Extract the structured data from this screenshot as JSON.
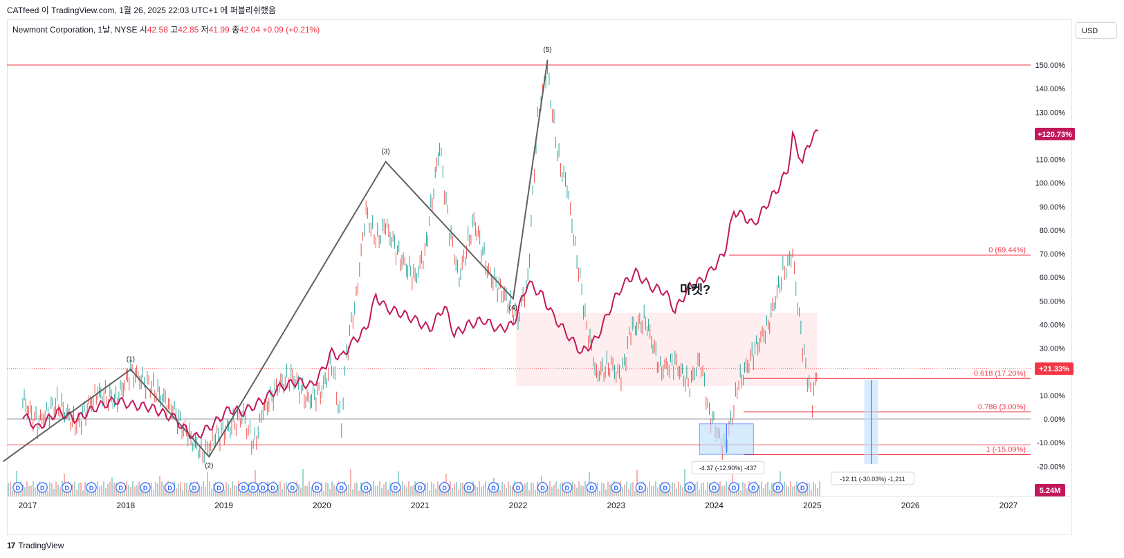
{
  "header": {
    "publish_line": "CATfeed 이 TradingView.com, 1월 26, 2025 22:03 UTC+1 에 퍼블리쉬했음",
    "symbol_name": "Newmont Corporation, 1날, NYSE",
    "open_label": "시",
    "open_value": "42.58",
    "high_label": "고",
    "high_value": "42.85",
    "low_label": "저",
    "low_value": "41.99",
    "close_label": "종",
    "close_value": "42.04",
    "change": "+0.09 (+0.21%)"
  },
  "currency_button": "USD",
  "footer": {
    "brand": "TradingView",
    "logo": "17"
  },
  "colors": {
    "price_up": "#26a69a",
    "price_down": "#ef5350",
    "compare_line": "#c2185b",
    "wave_line": "#606060",
    "level_line": "#f23645",
    "zone_fill": "#fde2e4",
    "measure_fill": "#bbdefb",
    "measure_line": "#2962ff",
    "dividend_circle": "#2962ff"
  },
  "chart_data": {
    "type": "line",
    "y_scale": "percent",
    "ylim": [
      -20,
      155
    ],
    "y_ticks": [
      "150.00%",
      "140.00%",
      "130.00%",
      "120.00%",
      "110.00%",
      "100.00%",
      "90.00%",
      "80.00%",
      "70.00%",
      "60.00%",
      "50.00%",
      "40.00%",
      "30.00%",
      "20.00%",
      "10.00%",
      "0.00%",
      "-10.00%",
      "-20.00%"
    ],
    "y_tick_values": [
      150,
      140,
      130,
      120,
      110,
      100,
      90,
      80,
      70,
      60,
      50,
      40,
      30,
      20,
      10,
      0,
      -10,
      -20
    ],
    "x_labels": [
      "2017",
      "2018",
      "2019",
      "2020",
      "2021",
      "2022",
      "2023",
      "2024",
      "2025",
      "2026",
      "2027"
    ],
    "x_label_values": [
      2017,
      2018,
      2019,
      2020,
      2021,
      2022,
      2023,
      2024,
      2025,
      2026,
      2027
    ],
    "xlim": [
      2016.75,
      2027.4
    ],
    "series": [
      {
        "name": "",
        "style": "candles",
        "x": [
          2016.95,
          2017.1,
          2017.3,
          2017.5,
          2017.7,
          2017.9,
          2018.05,
          2018.25,
          2018.45,
          2018.65,
          2018.8,
          2018.9,
          2019.05,
          2019.2,
          2019.3,
          2019.4,
          2019.55,
          2019.7,
          2019.85,
          2020.0,
          2020.1,
          2020.2,
          2020.25,
          2020.35,
          2020.45,
          2020.55,
          2020.65,
          2020.8,
          2020.95,
          2021.05,
          2021.2,
          2021.3,
          2021.4,
          2021.55,
          2021.7,
          2021.85,
          2022.0,
          2022.1,
          2022.2,
          2022.3,
          2022.4,
          2022.5,
          2022.6,
          2022.7,
          2022.8,
          2022.95,
          2023.05,
          2023.15,
          2023.3,
          2023.45,
          2023.6,
          2023.75,
          2023.85,
          2023.95,
          2024.1,
          2024.15,
          2024.25,
          2024.4,
          2024.55,
          2024.7,
          2024.8,
          2024.9,
          2025.0,
          2025.06
        ],
        "y": [
          8,
          -2,
          7,
          -3,
          11,
          8,
          20,
          14,
          6,
          -8,
          -15,
          -8,
          -4,
          2,
          -12,
          3,
          14,
          18,
          8,
          12,
          24,
          -2,
          28,
          52,
          88,
          75,
          82,
          68,
          60,
          70,
          116,
          80,
          60,
          84,
          62,
          53,
          42,
          60,
          128,
          148,
          112,
          98,
          68,
          40,
          19,
          23,
          17,
          38,
          42,
          21,
          24,
          14,
          26,
          3,
          -13,
          -5,
          15,
          28,
          40,
          62,
          69,
          30,
          7,
          23
        ]
      },
      {
        "name": "",
        "style": "line",
        "x": [
          2016.95,
          2017.1,
          2017.3,
          2017.5,
          2017.7,
          2017.9,
          2018.05,
          2018.25,
          2018.5,
          2018.7,
          2018.9,
          2019.05,
          2019.2,
          2019.4,
          2019.55,
          2019.75,
          2019.9,
          2020.0,
          2020.1,
          2020.2,
          2020.3,
          2020.45,
          2020.55,
          2020.65,
          2020.8,
          2020.95,
          2021.1,
          2021.25,
          2021.35,
          2021.5,
          2021.65,
          2021.8,
          2021.95,
          2022.1,
          2022.25,
          2022.35,
          2022.5,
          2022.65,
          2022.8,
          2022.95,
          2023.05,
          2023.2,
          2023.35,
          2023.5,
          2023.6,
          2023.75,
          2023.85,
          2023.95,
          2024.1,
          2024.2,
          2024.3,
          2024.4,
          2024.55,
          2024.65,
          2024.75,
          2024.8,
          2024.9,
          2024.95,
          2025.06
        ],
        "y": [
          2,
          -4,
          3,
          0,
          5,
          8,
          6,
          5,
          0,
          -8,
          -2,
          4,
          3,
          8,
          13,
          16,
          14,
          20,
          28,
          26,
          32,
          38,
          52,
          47,
          45,
          42,
          38,
          48,
          36,
          40,
          42,
          38,
          40,
          58,
          52,
          44,
          36,
          28,
          34,
          48,
          56,
          62,
          56,
          54,
          46,
          56,
          58,
          62,
          70,
          88,
          86,
          82,
          92,
          98,
          106,
          120,
          108,
          116,
          122
        ]
      }
    ],
    "dividend_markers_x": [
      2016.9,
      2017.15,
      2017.4,
      2017.65,
      2017.95,
      2018.2,
      2018.45,
      2018.7,
      2018.95,
      2019.2,
      2019.3,
      2019.4,
      2019.5,
      2019.7,
      2019.95,
      2020.2,
      2020.45,
      2020.75,
      2021.0,
      2021.25,
      2021.5,
      2021.75,
      2022.0,
      2022.25,
      2022.5,
      2022.75,
      2023.0,
      2023.25,
      2023.5,
      2023.75,
      2024.0,
      2024.2,
      2024.4,
      2024.65,
      2024.9
    ],
    "dividend_marker_label": "D"
  },
  "wave_labels": {
    "w1": "(1)",
    "w2": "(2)",
    "w3": "(3)",
    "w4": "(4)",
    "w5": "(5)"
  },
  "wave_points": [
    {
      "label": "",
      "x": 2016.75,
      "y": -18
    },
    {
      "label": "w1",
      "x": 2018.05,
      "y": 21
    },
    {
      "label": "w2",
      "x": 2018.85,
      "y": -16
    },
    {
      "label": "w3",
      "x": 2020.65,
      "y": 109
    },
    {
      "label": "w4",
      "x": 2021.95,
      "y": 51
    },
    {
      "label": "w5",
      "x": 2022.3,
      "y": 152
    }
  ],
  "annotation_text": "마켓?",
  "price_badge": "+21.33%",
  "compare_badge": "+120.73%",
  "volume_badge": "5.24M",
  "fib_levels": [
    {
      "label": "0 (69.44%)",
      "value": 69.44
    },
    {
      "label": "0.618 (17.20%)",
      "value": 17.2
    },
    {
      "label": "0.786 (3.00%)",
      "value": 3.0
    },
    {
      "label": "1 (-15.09%)",
      "value": -15.09
    }
  ],
  "zone_bounds": {
    "x0": 2021.98,
    "x1": 2025.05,
    "y_top": 45,
    "y_bottom": 14
  },
  "top_line_value": 150,
  "extra_line_values": [
    -11,
    0
  ],
  "measure_small": {
    "label": "-4.37 (-12.90%) -437",
    "x0": 2023.85,
    "x1": 2024.4,
    "y_top": -2,
    "y_bottom": -15
  },
  "measure_large": {
    "label": "-12.11 (-30.03%) -1,211",
    "x": 2025.6,
    "y_top": 16.5,
    "y_bottom": -19
  }
}
